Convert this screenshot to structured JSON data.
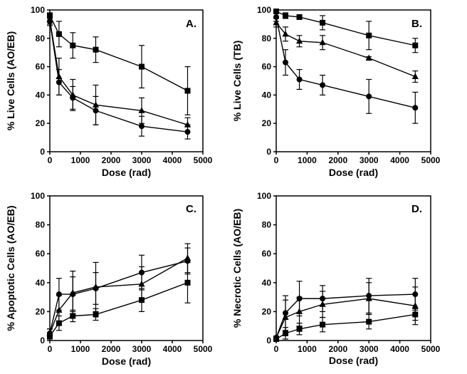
{
  "chart_data": [
    {
      "panel": "A.",
      "type": "line",
      "xlabel": "Dose (rad)",
      "ylabel": "% Live Cells (AO/EB)",
      "xlim": [
        0,
        5000
      ],
      "ylim": [
        0,
        100
      ],
      "x_ticks": [
        0,
        1000,
        2000,
        3000,
        4000,
        5000
      ],
      "y_ticks": [
        0,
        20,
        40,
        60,
        80,
        100
      ],
      "x": [
        0,
        300,
        750,
        1500,
        3000,
        4500
      ],
      "series": [
        {
          "marker": "square",
          "values": [
            96,
            83,
            75,
            72,
            60,
            43
          ],
          "errors": [
            2,
            9,
            9,
            9,
            15,
            17
          ]
        },
        {
          "marker": "triangle",
          "values": [
            93,
            53,
            40,
            33,
            29,
            19
          ],
          "errors": [
            3,
            13,
            11,
            14,
            9,
            5
          ]
        },
        {
          "marker": "circle",
          "values": [
            92,
            49,
            38,
            29,
            18,
            14
          ],
          "errors": [
            3,
            9,
            8,
            10,
            7,
            5
          ]
        }
      ]
    },
    {
      "panel": "B.",
      "type": "line",
      "xlabel": "Dose (rad)",
      "ylabel": "% Live Cells (TB)",
      "xlim": [
        0,
        5000
      ],
      "ylim": [
        0,
        100
      ],
      "x_ticks": [
        0,
        1000,
        2000,
        3000,
        4000,
        5000
      ],
      "y_ticks": [
        0,
        20,
        40,
        60,
        80,
        100
      ],
      "x": [
        0,
        300,
        750,
        1500,
        3000,
        4500
      ],
      "series": [
        {
          "marker": "square",
          "values": [
            99,
            96,
            95,
            91,
            82,
            75
          ],
          "errors": [
            1,
            2,
            1,
            5,
            10,
            5
          ]
        },
        {
          "marker": "triangle",
          "values": [
            91,
            83,
            78,
            77,
            66,
            53
          ],
          "errors": [
            3,
            5,
            4,
            5,
            1,
            4
          ]
        },
        {
          "marker": "circle",
          "values": [
            95,
            63,
            51,
            47,
            39,
            31
          ],
          "errors": [
            3,
            9,
            7,
            7,
            12,
            11
          ]
        }
      ]
    },
    {
      "panel": "C.",
      "type": "line",
      "xlabel": "Dose (rad)",
      "ylabel": "% Apoptotic Cells (AO/EB)",
      "xlim": [
        0,
        5000
      ],
      "ylim": [
        0,
        100
      ],
      "x_ticks": [
        0,
        1000,
        2000,
        3000,
        4000,
        5000
      ],
      "y_ticks": [
        0,
        20,
        40,
        60,
        80,
        100
      ],
      "x": [
        0,
        300,
        750,
        1500,
        3000,
        4500
      ],
      "series": [
        {
          "marker": "square",
          "values": [
            3,
            12,
            17,
            18,
            28,
            40
          ],
          "errors": [
            2,
            5,
            4,
            4,
            8,
            14
          ]
        },
        {
          "marker": "triangle",
          "values": [
            5,
            21,
            33,
            37,
            39,
            57
          ],
          "errors": [
            3,
            10,
            15,
            17,
            12,
            10
          ]
        },
        {
          "marker": "circle",
          "values": [
            5,
            32,
            32,
            36,
            47,
            55
          ],
          "errors": [
            3,
            11,
            12,
            11,
            12,
            9
          ]
        }
      ]
    },
    {
      "panel": "D.",
      "type": "line",
      "xlabel": "Dose (rad)",
      "ylabel": "% Necrotic Cells (AO/EB)",
      "xlim": [
        0,
        5000
      ],
      "ylim": [
        0,
        100
      ],
      "x_ticks": [
        0,
        1000,
        2000,
        3000,
        4000,
        5000
      ],
      "y_ticks": [
        0,
        20,
        40,
        60,
        80,
        100
      ],
      "x": [
        0,
        300,
        750,
        1500,
        3000,
        4500
      ],
      "series": [
        {
          "marker": "square",
          "values": [
            1,
            5,
            8,
            11,
            13,
            18
          ],
          "errors": [
            1,
            4,
            4,
            5,
            5,
            4
          ]
        },
        {
          "marker": "triangle",
          "values": [
            2,
            16,
            20,
            25,
            29,
            24
          ],
          "errors": [
            1,
            12,
            10,
            9,
            11,
            13
          ]
        },
        {
          "marker": "circle",
          "values": [
            2,
            19,
            29,
            29,
            31,
            32
          ],
          "errors": [
            1,
            12,
            12,
            9,
            12,
            11
          ]
        }
      ]
    }
  ]
}
